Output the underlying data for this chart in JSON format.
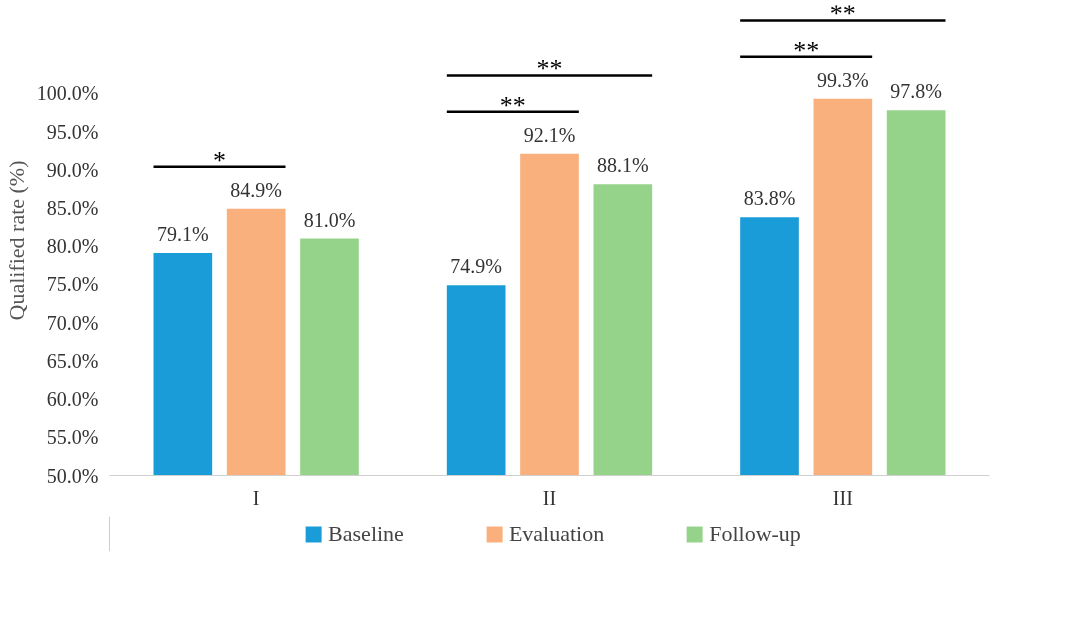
{
  "chart_data": {
    "type": "bar",
    "ylabel": "Qualified rate (%)",
    "categories": [
      "I",
      "II",
      "III"
    ],
    "series": [
      {
        "name": "Baseline",
        "color": "#1a9cd8",
        "values": [
          79.1,
          74.9,
          83.8
        ],
        "value_labels": [
          "79.1%",
          "74.9%",
          "83.8%"
        ]
      },
      {
        "name": "Evaluation",
        "color": "#f9b07c",
        "values": [
          84.9,
          92.1,
          99.3
        ],
        "value_labels": [
          "84.9%",
          "92.1%",
          "99.3%"
        ]
      },
      {
        "name": "Follow-up",
        "color": "#96d38a",
        "values": [
          81.0,
          88.1,
          97.8
        ],
        "value_labels": [
          "81.0%",
          "88.1%",
          "97.8%"
        ]
      }
    ],
    "ylim": [
      50,
      100
    ],
    "yticks": [
      {
        "value": 50,
        "label": "50.0%"
      },
      {
        "value": 55,
        "label": "55.0%"
      },
      {
        "value": 60,
        "label": "60.0%"
      },
      {
        "value": 65,
        "label": "65.0%"
      },
      {
        "value": 70,
        "label": "70.0%"
      },
      {
        "value": 75,
        "label": "75.0%"
      },
      {
        "value": 80,
        "label": "80.0%"
      },
      {
        "value": 85,
        "label": "85.0%"
      },
      {
        "value": 90,
        "label": "90.0%"
      },
      {
        "value": 95,
        "label": "95.0%"
      },
      {
        "value": 100,
        "label": "100.0%"
      }
    ],
    "annotations": [
      "*",
      "**",
      "**",
      "**",
      "**"
    ],
    "grid": false,
    "legend": "bottom"
  }
}
